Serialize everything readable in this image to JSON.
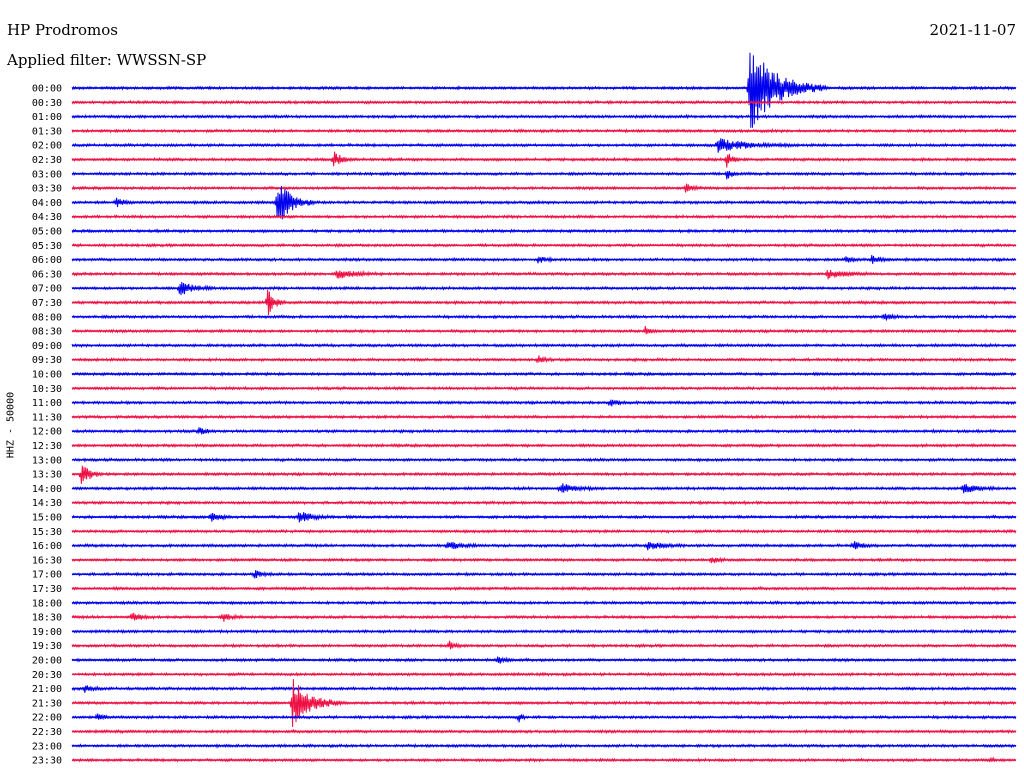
{
  "header": {
    "station": "HP Prodromos",
    "date": "2021-11-07",
    "filter_label": "Applied filter: WWSSN-SP",
    "channel_label": "HHZ - 50000"
  },
  "chart_data": {
    "type": "line",
    "title": "HP Prodromos",
    "subtitle": "Applied filter: WWSSN-SP",
    "ylabel": "HHZ - 50000",
    "date": "2021-11-07",
    "colors": {
      "even_rows": "#0000ee",
      "odd_rows": "#ee1144"
    },
    "row_minutes": 30,
    "x_range_minutes": [
      0,
      30
    ],
    "trace_labels": [
      "00:00",
      "00:30",
      "01:00",
      "01:30",
      "02:00",
      "02:30",
      "03:00",
      "03:30",
      "04:00",
      "04:30",
      "05:00",
      "05:30",
      "06:00",
      "06:30",
      "07:00",
      "07:30",
      "08:00",
      "08:30",
      "09:00",
      "09:30",
      "10:00",
      "10:30",
      "11:00",
      "11:30",
      "12:00",
      "12:30",
      "13:00",
      "13:30",
      "14:00",
      "14:30",
      "15:00",
      "15:30",
      "16:00",
      "16:30",
      "17:00",
      "17:30",
      "18:00",
      "18:30",
      "19:00",
      "19:30",
      "20:00",
      "20:30",
      "21:00",
      "21:30",
      "22:00",
      "22:30",
      "23:00",
      "23:30"
    ],
    "events": [
      {
        "row": "00:00",
        "minute": 21.5,
        "amplitude": 5.8,
        "duration_min": 2.5
      },
      {
        "row": "02:00",
        "minute": 20.5,
        "amplitude": 0.9,
        "duration_min": 2.5
      },
      {
        "row": "02:30",
        "minute": 8.3,
        "amplitude": 1.2,
        "duration_min": 0.7
      },
      {
        "row": "02:30",
        "minute": 20.8,
        "amplitude": 1.0,
        "duration_min": 0.5
      },
      {
        "row": "03:00",
        "minute": 20.8,
        "amplitude": 0.9,
        "duration_min": 0.4
      },
      {
        "row": "03:30",
        "minute": 19.5,
        "amplitude": 0.5,
        "duration_min": 0.6
      },
      {
        "row": "04:00",
        "minute": 1.4,
        "amplitude": 0.7,
        "duration_min": 0.6
      },
      {
        "row": "04:00",
        "minute": 6.5,
        "amplitude": 3.4,
        "duration_min": 1.2
      },
      {
        "row": "06:00",
        "minute": 14.8,
        "amplitude": 0.5,
        "duration_min": 0.7
      },
      {
        "row": "06:00",
        "minute": 24.6,
        "amplitude": 0.5,
        "duration_min": 0.5
      },
      {
        "row": "06:00",
        "minute": 25.4,
        "amplitude": 0.6,
        "duration_min": 0.7
      },
      {
        "row": "06:30",
        "minute": 8.4,
        "amplitude": 0.7,
        "duration_min": 1.5
      },
      {
        "row": "06:30",
        "minute": 24.0,
        "amplitude": 0.6,
        "duration_min": 1.5
      },
      {
        "row": "07:00",
        "minute": 3.4,
        "amplitude": 1.0,
        "duration_min": 1.2
      },
      {
        "row": "07:30",
        "minute": 6.2,
        "amplitude": 2.0,
        "duration_min": 0.6
      },
      {
        "row": "08:00",
        "minute": 25.8,
        "amplitude": 0.6,
        "duration_min": 0.6
      },
      {
        "row": "08:30",
        "minute": 18.2,
        "amplitude": 0.6,
        "duration_min": 0.5
      },
      {
        "row": "09:30",
        "minute": 14.8,
        "amplitude": 0.6,
        "duration_min": 0.5
      },
      {
        "row": "11:00",
        "minute": 17.1,
        "amplitude": 0.6,
        "duration_min": 0.6
      },
      {
        "row": "12:00",
        "minute": 4.0,
        "amplitude": 0.6,
        "duration_min": 0.6
      },
      {
        "row": "13:30",
        "minute": 0.3,
        "amplitude": 1.8,
        "duration_min": 0.7
      },
      {
        "row": "14:00",
        "minute": 15.5,
        "amplitude": 0.7,
        "duration_min": 1.2
      },
      {
        "row": "14:00",
        "minute": 28.3,
        "amplitude": 0.7,
        "duration_min": 1.2
      },
      {
        "row": "15:00",
        "minute": 4.4,
        "amplitude": 0.8,
        "duration_min": 0.7
      },
      {
        "row": "15:00",
        "minute": 7.2,
        "amplitude": 0.8,
        "duration_min": 1.2
      },
      {
        "row": "16:00",
        "minute": 11.9,
        "amplitude": 0.6,
        "duration_min": 1.2
      },
      {
        "row": "16:00",
        "minute": 18.3,
        "amplitude": 0.6,
        "duration_min": 1.2
      },
      {
        "row": "16:00",
        "minute": 24.8,
        "amplitude": 0.6,
        "duration_min": 0.8
      },
      {
        "row": "16:30",
        "minute": 20.3,
        "amplitude": 0.5,
        "duration_min": 0.6
      },
      {
        "row": "17:00",
        "minute": 5.8,
        "amplitude": 0.5,
        "duration_min": 0.6
      },
      {
        "row": "18:30",
        "minute": 1.9,
        "amplitude": 0.6,
        "duration_min": 0.8
      },
      {
        "row": "18:30",
        "minute": 4.8,
        "amplitude": 0.6,
        "duration_min": 0.6
      },
      {
        "row": "19:30",
        "minute": 12.0,
        "amplitude": 0.5,
        "duration_min": 0.5
      },
      {
        "row": "20:00",
        "minute": 13.5,
        "amplitude": 0.5,
        "duration_min": 0.7
      },
      {
        "row": "21:00",
        "minute": 0.4,
        "amplitude": 0.5,
        "duration_min": 0.6
      },
      {
        "row": "21:30",
        "minute": 7.0,
        "amplitude": 3.3,
        "duration_min": 1.6
      },
      {
        "row": "22:00",
        "minute": 0.8,
        "amplitude": 0.6,
        "duration_min": 0.6
      },
      {
        "row": "22:00",
        "minute": 14.2,
        "amplitude": 0.6,
        "duration_min": 0.3
      },
      {
        "row": "23:30",
        "minute": 29.2,
        "amplitude": 0.4,
        "duration_min": 0.3
      }
    ]
  }
}
